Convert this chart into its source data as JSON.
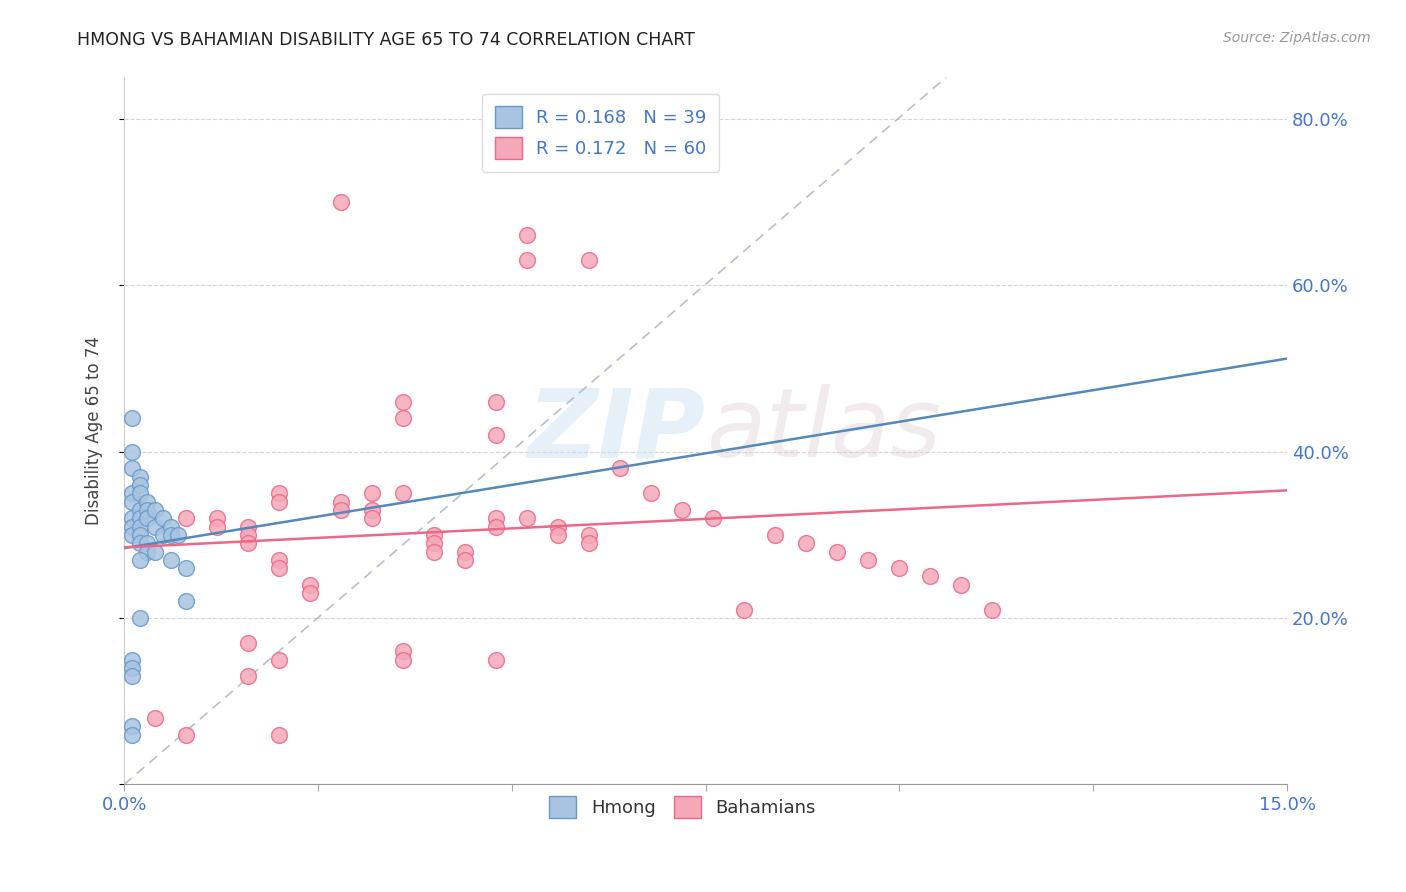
{
  "title": "HMONG VS BAHAMIAN DISABILITY AGE 65 TO 74 CORRELATION CHART",
  "source": "Source: ZipAtlas.com",
  "ylabel": "Disability Age 65 to 74",
  "xlim": [
    0.0,
    0.15
  ],
  "ylim": [
    0.0,
    0.85
  ],
  "x_ticks": [
    0.0,
    0.025,
    0.05,
    0.075,
    0.1,
    0.125,
    0.15
  ],
  "x_tick_labels": [
    "0.0%",
    "",
    "",
    "",
    "",
    "",
    "15.0%"
  ],
  "y_ticks": [
    0.0,
    0.2,
    0.4,
    0.6,
    0.8
  ],
  "y_tick_labels": [
    "",
    "20.0%",
    "40.0%",
    "60.0%",
    "80.0%"
  ],
  "hmong_R": 0.168,
  "hmong_N": 39,
  "bahamian_R": 0.172,
  "bahamian_N": 60,
  "hmong_color": "#a8c4e0",
  "bahamian_color": "#f4a8b8",
  "hmong_edge_color": "#6699cc",
  "bahamian_edge_color": "#ee6688",
  "hmong_line_color": "#5588bb",
  "bahamian_line_color": "#ee6688",
  "dashed_line_color": "#b0b8c8",
  "legend_text_color": "#4477cc",
  "grid_color": "#cccccc",
  "background_color": "#ffffff",
  "watermark_zip": "ZIP",
  "watermark_atlas": "atlas",
  "hmong_x": [
    0.001,
    0.001,
    0.001,
    0.001,
    0.001,
    0.001,
    0.001,
    0.001,
    0.001,
    0.001,
    0.002,
    0.002,
    0.002,
    0.002,
    0.002,
    0.002,
    0.002,
    0.002,
    0.003,
    0.003,
    0.003,
    0.003,
    0.003,
    0.004,
    0.004,
    0.004,
    0.005,
    0.005,
    0.006,
    0.006,
    0.006,
    0.007,
    0.008,
    0.008,
    0.001,
    0.001,
    0.001,
    0.002,
    0.002
  ],
  "hmong_y": [
    0.44,
    0.4,
    0.38,
    0.35,
    0.34,
    0.32,
    0.31,
    0.3,
    0.15,
    0.07,
    0.37,
    0.36,
    0.35,
    0.33,
    0.32,
    0.31,
    0.3,
    0.29,
    0.34,
    0.33,
    0.32,
    0.29,
    0.28,
    0.33,
    0.31,
    0.28,
    0.32,
    0.3,
    0.31,
    0.3,
    0.27,
    0.3,
    0.26,
    0.22,
    0.14,
    0.13,
    0.06,
    0.27,
    0.2
  ],
  "bahamian_x": [
    0.004,
    0.008,
    0.008,
    0.012,
    0.012,
    0.016,
    0.016,
    0.016,
    0.016,
    0.02,
    0.02,
    0.02,
    0.02,
    0.02,
    0.024,
    0.024,
    0.028,
    0.028,
    0.028,
    0.032,
    0.032,
    0.032,
    0.036,
    0.036,
    0.036,
    0.036,
    0.04,
    0.04,
    0.04,
    0.044,
    0.044,
    0.048,
    0.048,
    0.048,
    0.048,
    0.052,
    0.052,
    0.052,
    0.056,
    0.056,
    0.06,
    0.06,
    0.06,
    0.064,
    0.068,
    0.072,
    0.076,
    0.08,
    0.084,
    0.088,
    0.092,
    0.096,
    0.1,
    0.104,
    0.108,
    0.112,
    0.016,
    0.036,
    0.048,
    0.02
  ],
  "bahamian_y": [
    0.08,
    0.32,
    0.06,
    0.32,
    0.31,
    0.31,
    0.3,
    0.29,
    0.17,
    0.35,
    0.34,
    0.27,
    0.26,
    0.06,
    0.24,
    0.23,
    0.7,
    0.34,
    0.33,
    0.35,
    0.33,
    0.32,
    0.46,
    0.44,
    0.35,
    0.16,
    0.3,
    0.29,
    0.28,
    0.28,
    0.27,
    0.46,
    0.42,
    0.32,
    0.31,
    0.66,
    0.63,
    0.32,
    0.31,
    0.3,
    0.63,
    0.3,
    0.29,
    0.38,
    0.35,
    0.33,
    0.32,
    0.21,
    0.3,
    0.29,
    0.28,
    0.27,
    0.26,
    0.25,
    0.24,
    0.21,
    0.13,
    0.15,
    0.15,
    0.15
  ]
}
